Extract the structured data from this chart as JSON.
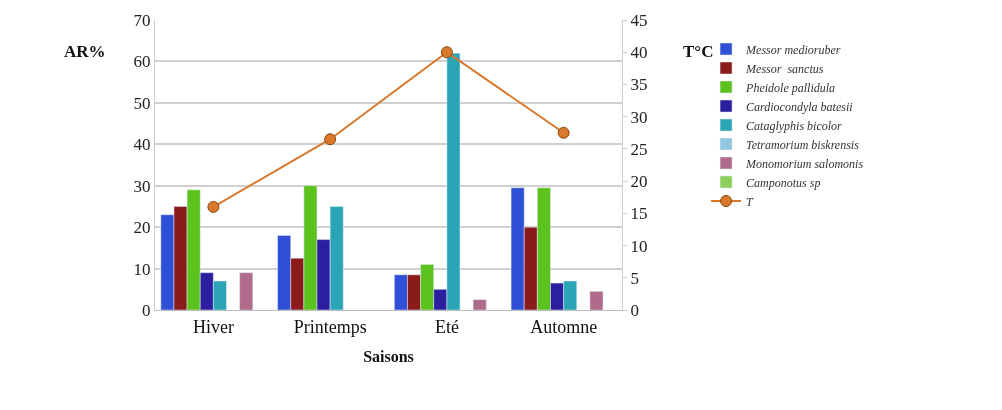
{
  "chart_data": {
    "type": "bar",
    "categories": [
      "Hiver",
      "Printemps",
      "Eté",
      "Automne"
    ],
    "xlabel": "Saisons",
    "ylabel": "AR%",
    "y2label": "T°C",
    "series": [
      {
        "name": "Messor medioruber",
        "color": "#2e4fd6",
        "values": [
          23,
          18,
          8.5,
          29.5
        ]
      },
      {
        "name": "Messor  sanctus",
        "color": "#8b1a1a",
        "values": [
          25,
          12.5,
          8.5,
          20
        ]
      },
      {
        "name": "Pheidole pallidula",
        "color": "#5cc21d",
        "values": [
          29,
          30,
          11,
          29.5
        ]
      },
      {
        "name": "Cardiocondyla batesii",
        "color": "#2b1fa0",
        "values": [
          9,
          17,
          5,
          6.5
        ]
      },
      {
        "name": "Cataglyphis bicolor",
        "color": "#2aa5b5",
        "values": [
          7,
          25,
          62,
          7
        ]
      },
      {
        "name": "Tetramorium biskrensis",
        "color": "#8fc8de",
        "values": [
          null,
          null,
          null,
          null
        ]
      },
      {
        "name": "Monomorium salomonis",
        "color": "#b06a8a",
        "values": [
          9,
          null,
          2.5,
          4.5
        ]
      },
      {
        "name": "Camponotus sp",
        "color": "#8ccf5a",
        "values": [
          null,
          null,
          null,
          null
        ]
      },
      {
        "name": "T",
        "color": "#d9782a",
        "type": "line",
        "axis": "y2",
        "marker": "circle",
        "values": [
          16,
          26.5,
          40,
          27.5
        ]
      }
    ],
    "ylim": [
      0,
      70
    ],
    "yticks": [
      0,
      10,
      20,
      30,
      40,
      50,
      60,
      70
    ],
    "y2lim": [
      0,
      45
    ],
    "y2ticks": [
      0,
      5,
      10,
      15,
      20,
      25,
      30,
      35,
      40,
      45
    ],
    "grid": "y",
    "legend": "right"
  }
}
